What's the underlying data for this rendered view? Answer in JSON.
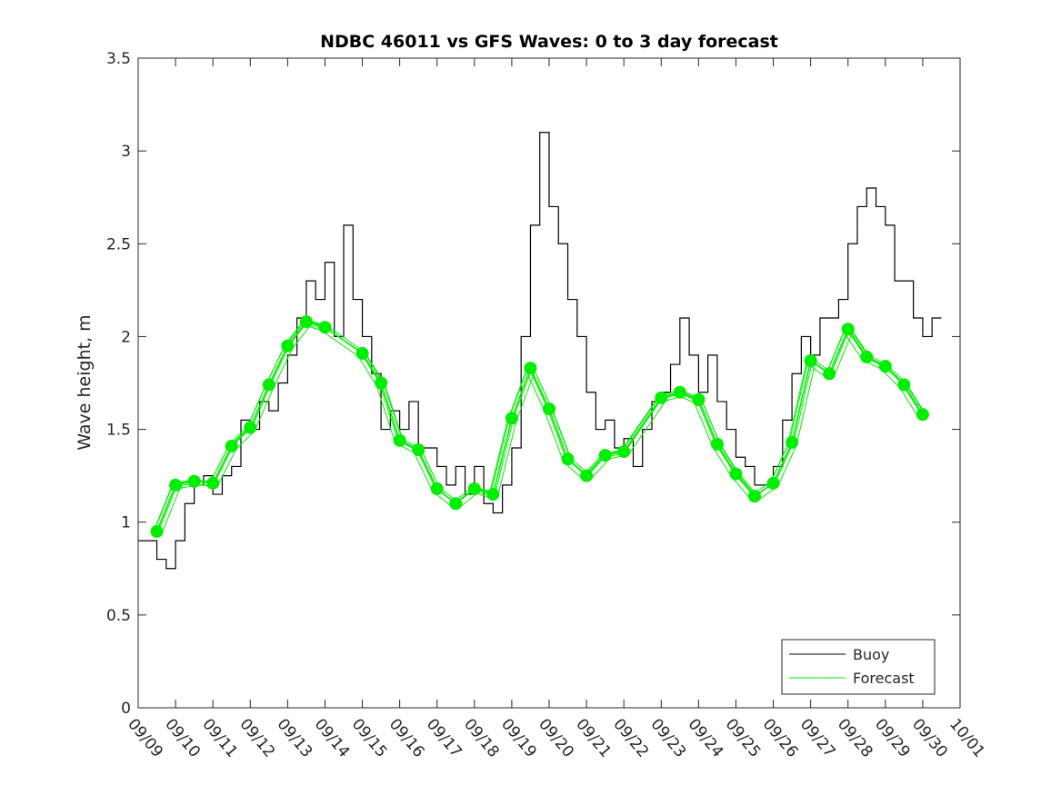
{
  "chart_data": {
    "type": "line",
    "title": "NDBC 46011 vs GFS Waves: 0 to 3 day forecast",
    "xlabel": "",
    "ylabel": "Wave height, m",
    "ylim": [
      0,
      3.5
    ],
    "xlim_days": [
      0,
      22
    ],
    "yticks": [
      "0",
      "0.5",
      "1",
      "1.5",
      "2",
      "2.5",
      "3",
      "3.5"
    ],
    "xticks": [
      "09/09",
      "09/10",
      "09/11",
      "09/12",
      "09/13",
      "09/14",
      "09/15",
      "09/16",
      "09/17",
      "09/18",
      "09/19",
      "09/20",
      "09/21",
      "09/22",
      "09/23",
      "09/24",
      "09/25",
      "09/26",
      "09/27",
      "09/28",
      "09/29",
      "09/30",
      "10/01"
    ],
    "legend": {
      "placement": "bottom-right",
      "entries": [
        "Buoy",
        "Forecast"
      ]
    },
    "colors": {
      "buoy": "#000000",
      "forecast": "#00ee00"
    },
    "series": [
      {
        "name": "Buoy",
        "x_step_days": 0.25,
        "values": [
          0.9,
          0.9,
          0.8,
          0.75,
          0.9,
          1.1,
          1.2,
          1.25,
          1.15,
          1.25,
          1.3,
          1.55,
          1.5,
          1.65,
          1.6,
          1.75,
          1.9,
          2.1,
          2.3,
          2.2,
          2.4,
          2.0,
          2.6,
          2.2,
          2.0,
          1.8,
          1.5,
          1.6,
          1.5,
          1.65,
          1.4,
          1.4,
          1.3,
          1.2,
          1.3,
          1.15,
          1.3,
          1.1,
          1.05,
          1.2,
          1.4,
          2.0,
          2.6,
          3.1,
          2.7,
          2.5,
          2.2,
          2.0,
          1.7,
          1.5,
          1.55,
          1.4,
          1.45,
          1.3,
          1.5,
          1.65,
          1.7,
          1.85,
          2.1,
          1.9,
          1.7,
          1.9,
          1.65,
          1.5,
          1.35,
          1.3,
          1.2,
          1.2,
          1.3,
          1.55,
          1.8,
          2.0,
          1.9,
          2.1,
          2.1,
          2.2,
          2.5,
          2.7,
          2.8,
          2.7,
          2.6,
          2.3,
          2.3,
          2.1,
          2.0,
          2.1
        ]
      },
      {
        "name": "Forecast",
        "x_days": [
          0.5,
          1,
          1.5,
          2,
          2.5,
          3,
          3.5,
          4,
          4.5,
          5,
          6,
          6.5,
          7,
          7.5,
          8,
          8.5,
          9,
          9.5,
          10,
          10.5,
          11,
          11.5,
          12,
          12.5,
          13,
          14,
          14.5,
          15,
          15.5,
          16,
          16.5,
          17,
          17.5,
          18,
          18.5,
          19,
          19.5,
          20,
          20.5,
          21
        ],
        "values": [
          0.95,
          1.2,
          1.22,
          1.21,
          1.41,
          1.51,
          1.74,
          1.95,
          2.08,
          2.05,
          1.91,
          1.75,
          1.44,
          1.39,
          1.18,
          1.1,
          1.18,
          1.15,
          1.56,
          1.83,
          1.61,
          1.34,
          1.25,
          1.36,
          1.38,
          1.67,
          1.7,
          1.66,
          1.42,
          1.26,
          1.14,
          1.21,
          1.43,
          1.87,
          1.8,
          2.04,
          1.89,
          1.84,
          1.74,
          1.58
        ]
      }
    ]
  }
}
